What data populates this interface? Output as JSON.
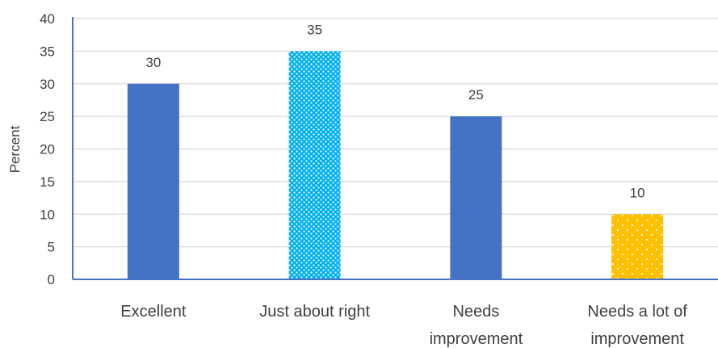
{
  "chart_data": {
    "type": "bar",
    "categories": [
      [
        "Excellent"
      ],
      [
        "Just about right"
      ],
      [
        "Needs",
        "improvement"
      ],
      [
        "Needs a lot of",
        "improvement"
      ]
    ],
    "values": [
      30,
      35,
      25,
      10
    ],
    "bar_colors": [
      "#4472C4",
      "#00B0F0",
      "#4472C4",
      "#FFC000"
    ],
    "bar_patterns": [
      "solid",
      "dotted-dense",
      "solid",
      "dotted-sparse"
    ],
    "data_labels": [
      "30",
      "35",
      "25",
      "10"
    ],
    "ylabel": "Percent",
    "ylim": [
      0,
      40
    ],
    "yticks": [
      0,
      5,
      10,
      15,
      20,
      25,
      30,
      35,
      40
    ],
    "grid": true,
    "gridline_color": "#D9D9D9",
    "axis_color": "#4472C4"
  }
}
